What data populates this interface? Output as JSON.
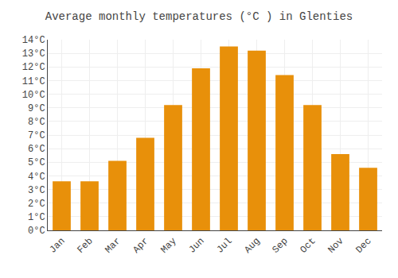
{
  "chart_data": {
    "type": "bar",
    "title": "Average monthly temperatures (°C ) in Glenties",
    "categories": [
      "Jan",
      "Feb",
      "Mar",
      "Apr",
      "May",
      "Jun",
      "Jul",
      "Aug",
      "Sep",
      "Oct",
      "Nov",
      "Dec"
    ],
    "values": [
      3.6,
      3.6,
      5.1,
      6.8,
      9.2,
      11.9,
      13.5,
      13.2,
      11.4,
      9.2,
      5.6,
      4.6
    ],
    "color": "#E8900A",
    "ylim": [
      0,
      14
    ],
    "yticks": [
      {
        "value": 0,
        "label": "0°C"
      },
      {
        "value": 1,
        "label": "1°C"
      },
      {
        "value": 2,
        "label": "2°C"
      },
      {
        "value": 3,
        "label": "3°C"
      },
      {
        "value": 4,
        "label": "4°C"
      },
      {
        "value": 5,
        "label": "5°C"
      },
      {
        "value": 6,
        "label": "6°C"
      },
      {
        "value": 7,
        "label": "7°C"
      },
      {
        "value": 8,
        "label": "8°C"
      },
      {
        "value": 9,
        "label": "9°C"
      },
      {
        "value": 10,
        "label": "10°C"
      },
      {
        "value": 11,
        "label": "11°C"
      },
      {
        "value": 12,
        "label": "12°C"
      },
      {
        "value": 13,
        "label": "13°C"
      },
      {
        "value": 14,
        "label": "14°C"
      }
    ],
    "grid": true
  }
}
